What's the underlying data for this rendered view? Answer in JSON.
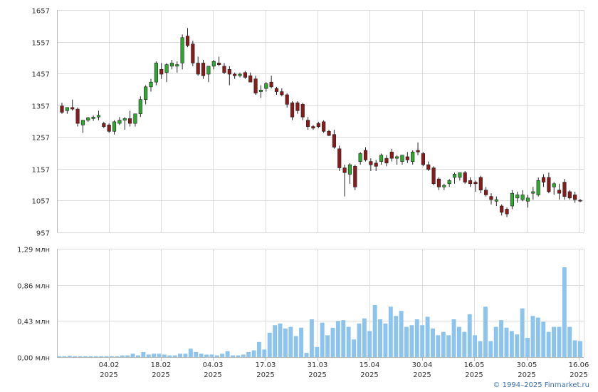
{
  "chart_data": [
    {
      "type": "candlestick",
      "title": "",
      "y_ticks": [
        "1657",
        "1557",
        "1457",
        "1357",
        "1257",
        "1157",
        "1057",
        "957"
      ],
      "ylim": [
        957,
        1657
      ],
      "x_ticks": [
        {
          "day": "04.02",
          "year": "2025"
        },
        {
          "day": "18.02",
          "year": "2025"
        },
        {
          "day": "04.03",
          "year": "2025"
        },
        {
          "day": "17.03",
          "year": "2025"
        },
        {
          "day": "31.03",
          "year": "2025"
        },
        {
          "day": "15.04",
          "year": "2025"
        },
        {
          "day": "30.04",
          "year": "2025"
        },
        {
          "day": "16.05",
          "year": "2025"
        },
        {
          "day": "30.05",
          "year": "2025"
        },
        {
          "day": "16.06",
          "year": "2025"
        }
      ],
      "candles": [
        [
          1355,
          1365,
          1330,
          1335
        ],
        [
          1340,
          1350,
          1330,
          1350
        ],
        [
          1350,
          1375,
          1340,
          1345
        ],
        [
          1345,
          1350,
          1290,
          1300
        ],
        [
          1295,
          1310,
          1270,
          1310
        ],
        [
          1310,
          1320,
          1305,
          1318
        ],
        [
          1315,
          1325,
          1308,
          1320
        ],
        [
          1320,
          1340,
          1310,
          1325
        ],
        [
          1300,
          1305,
          1285,
          1290
        ],
        [
          1295,
          1300,
          1270,
          1275
        ],
        [
          1275,
          1310,
          1265,
          1305
        ],
        [
          1300,
          1320,
          1295,
          1310
        ],
        [
          1310,
          1320,
          1280,
          1315
        ],
        [
          1315,
          1340,
          1290,
          1300
        ],
        [
          1300,
          1330,
          1290,
          1330
        ],
        [
          1330,
          1385,
          1320,
          1375
        ],
        [
          1375,
          1420,
          1360,
          1415
        ],
        [
          1415,
          1440,
          1400,
          1430
        ],
        [
          1430,
          1495,
          1420,
          1490
        ],
        [
          1470,
          1490,
          1440,
          1455
        ],
        [
          1460,
          1490,
          1430,
          1485
        ],
        [
          1480,
          1500,
          1470,
          1490
        ],
        [
          1480,
          1495,
          1460,
          1485
        ],
        [
          1490,
          1580,
          1470,
          1570
        ],
        [
          1575,
          1600,
          1540,
          1545
        ],
        [
          1550,
          1560,
          1480,
          1490
        ],
        [
          1490,
          1510,
          1450,
          1455
        ],
        [
          1490,
          1500,
          1440,
          1450
        ],
        [
          1455,
          1480,
          1430,
          1480
        ],
        [
          1480,
          1500,
          1470,
          1495
        ],
        [
          1490,
          1510,
          1480,
          1485
        ],
        [
          1480,
          1490,
          1455,
          1460
        ],
        [
          1470,
          1480,
          1420,
          1455
        ],
        [
          1455,
          1460,
          1440,
          1450
        ],
        [
          1450,
          1460,
          1445,
          1455
        ],
        [
          1460,
          1465,
          1440,
          1445
        ],
        [
          1450,
          1460,
          1430,
          1430
        ],
        [
          1440,
          1450,
          1390,
          1395
        ],
        [
          1400,
          1420,
          1380,
          1405
        ],
        [
          1410,
          1430,
          1400,
          1425
        ],
        [
          1430,
          1450,
          1410,
          1415
        ],
        [
          1410,
          1415,
          1390,
          1400
        ],
        [
          1400,
          1410,
          1385,
          1390
        ],
        [
          1390,
          1395,
          1350,
          1360
        ],
        [
          1365,
          1370,
          1310,
          1320
        ],
        [
          1365,
          1370,
          1330,
          1340
        ],
        [
          1360,
          1365,
          1310,
          1320
        ],
        [
          1310,
          1320,
          1280,
          1290
        ],
        [
          1290,
          1295,
          1280,
          1285
        ],
        [
          1300,
          1305,
          1285,
          1290
        ],
        [
          1305,
          1310,
          1270,
          1275
        ],
        [
          1275,
          1280,
          1260,
          1262
        ],
        [
          1265,
          1280,
          1220,
          1225
        ],
        [
          1220,
          1230,
          1150,
          1160
        ],
        [
          1160,
          1170,
          1070,
          1145
        ],
        [
          1140,
          1175,
          1110,
          1170
        ],
        [
          1165,
          1170,
          1090,
          1100
        ],
        [
          1180,
          1210,
          1170,
          1205
        ],
        [
          1215,
          1225,
          1180,
          1185
        ],
        [
          1180,
          1190,
          1150,
          1170
        ],
        [
          1175,
          1185,
          1150,
          1165
        ],
        [
          1180,
          1205,
          1170,
          1200
        ],
        [
          1190,
          1200,
          1165,
          1175
        ],
        [
          1210,
          1220,
          1180,
          1190
        ],
        [
          1190,
          1200,
          1170,
          1195
        ],
        [
          1180,
          1200,
          1170,
          1200
        ],
        [
          1195,
          1210,
          1175,
          1185
        ],
        [
          1180,
          1215,
          1170,
          1210
        ],
        [
          1215,
          1240,
          1200,
          1210
        ],
        [
          1205,
          1210,
          1165,
          1170
        ],
        [
          1170,
          1180,
          1150,
          1155
        ],
        [
          1160,
          1165,
          1105,
          1110
        ],
        [
          1125,
          1130,
          1090,
          1100
        ],
        [
          1100,
          1110,
          1090,
          1105
        ],
        [
          1110,
          1125,
          1100,
          1120
        ],
        [
          1130,
          1145,
          1110,
          1140
        ],
        [
          1130,
          1145,
          1120,
          1145
        ],
        [
          1145,
          1150,
          1110,
          1115
        ],
        [
          1120,
          1130,
          1100,
          1110
        ],
        [
          1115,
          1120,
          1085,
          1110
        ],
        [
          1130,
          1135,
          1080,
          1090
        ],
        [
          1090,
          1100,
          1070,
          1075
        ],
        [
          1070,
          1080,
          1045,
          1060
        ],
        [
          1055,
          1070,
          1040,
          1060
        ],
        [
          1040,
          1045,
          1010,
          1020
        ],
        [
          1030,
          1035,
          1005,
          1015
        ],
        [
          1040,
          1090,
          1030,
          1080
        ],
        [
          1065,
          1085,
          1050,
          1075
        ],
        [
          1060,
          1090,
          1055,
          1075
        ],
        [
          1055,
          1075,
          1035,
          1065
        ],
        [
          1080,
          1100,
          1060,
          1085
        ],
        [
          1075,
          1130,
          1070,
          1120
        ],
        [
          1130,
          1140,
          1100,
          1115
        ],
        [
          1130,
          1145,
          1080,
          1085
        ],
        [
          1100,
          1115,
          1075,
          1110
        ],
        [
          1090,
          1110,
          1060,
          1080
        ],
        [
          1115,
          1125,
          1060,
          1070
        ],
        [
          1085,
          1090,
          1060,
          1065
        ],
        [
          1075,
          1085,
          1050,
          1060
        ],
        [
          1058,
          1062,
          1052,
          1057
        ]
      ]
    },
    {
      "type": "bar",
      "title": "",
      "y_ticks": [
        "1,29 млн",
        "0,86 млн",
        "0,43 млн",
        "0,00 млн"
      ],
      "ylim": [
        0,
        1.29
      ],
      "unit": "млн",
      "values": [
        0.01,
        0.01,
        0.015,
        0.01,
        0.01,
        0.01,
        0.01,
        0.01,
        0.01,
        0.01,
        0.01,
        0.01,
        0.02,
        0.02,
        0.04,
        0.02,
        0.06,
        0.03,
        0.04,
        0.04,
        0.03,
        0.02,
        0.02,
        0.04,
        0.04,
        0.1,
        0.06,
        0.04,
        0.03,
        0.03,
        0.02,
        0.04,
        0.07,
        0.02,
        0.02,
        0.03,
        0.06,
        0.08,
        0.18,
        0.09,
        0.29,
        0.38,
        0.4,
        0.34,
        0.36,
        0.25,
        0.35,
        0.05,
        0.45,
        0.12,
        0.41,
        0.26,
        0.35,
        0.43,
        0.44,
        0.36,
        0.21,
        0.4,
        0.46,
        0.31,
        0.62,
        0.45,
        0.4,
        0.6,
        0.49,
        0.55,
        0.36,
        0.38,
        0.45,
        0.38,
        0.48,
        0.34,
        0.26,
        0.3,
        0.26,
        0.45,
        0.36,
        0.3,
        0.51,
        0.26,
        0.19,
        0.6,
        0.19,
        0.36,
        0.44,
        0.35,
        0.31,
        0.27,
        0.58,
        0.23,
        0.49,
        0.47,
        0.42,
        0.3,
        0.36,
        0.36,
        1.07,
        0.36,
        0.2,
        0.19
      ]
    }
  ],
  "copyright": "© 1994–2025 Finmarket.ru",
  "colors": {
    "up": "#2ea82e",
    "down": "#8b1a1a",
    "volume": "#8cc4ee",
    "grid": "#dcdcdc"
  }
}
